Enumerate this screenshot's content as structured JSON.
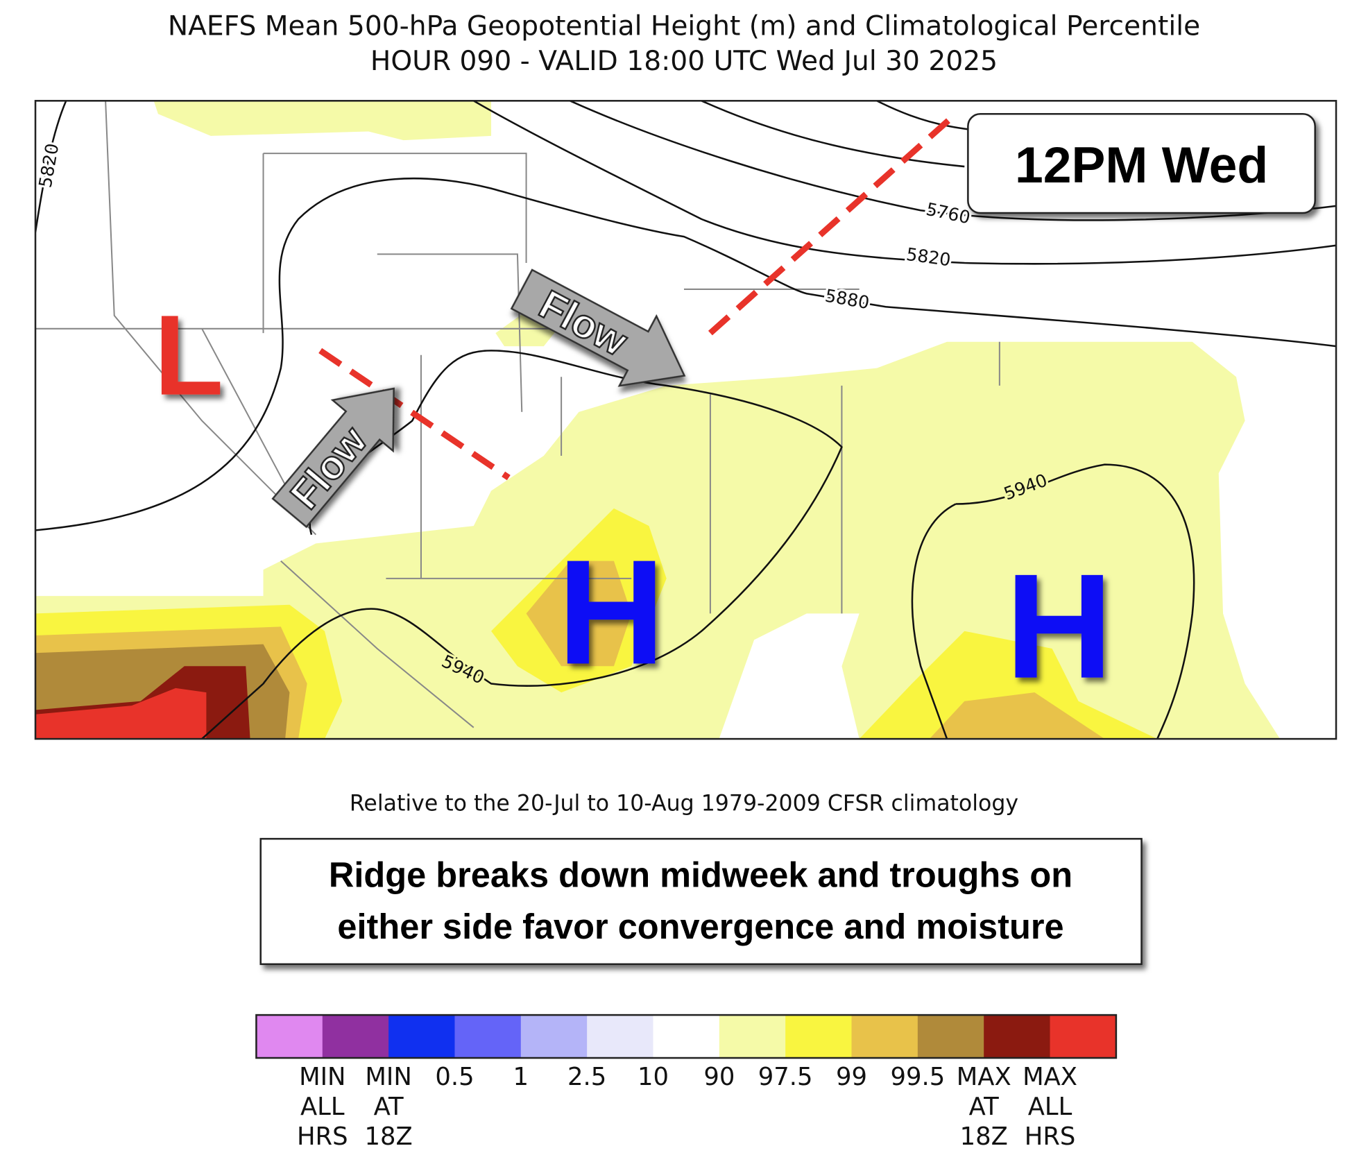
{
  "header": {
    "title": "NAEFS Mean 500-hPa Geopotential Height (m) and Climatological Percentile",
    "subtitle": "HOUR 090 - VALID 18:00 UTC Wed Jul 30 2025"
  },
  "map": {
    "contour_labels": [
      "5820",
      "5760",
      "5820",
      "5880",
      "5940",
      "5940"
    ],
    "systems": [
      "L",
      "H",
      "H"
    ],
    "arrows": [
      "Flow",
      "Flow"
    ],
    "time_label": "12PM Wed"
  },
  "caption": "Relative to the 20-Jul to 10-Aug 1979-2009 CFSR climatology",
  "callout": [
    "Ridge breaks down midweek and troughs on",
    "either side favor convergence and moisture"
  ],
  "colorbar": {
    "colors": [
      "#e088f0",
      "#9030a0",
      "#1030f0",
      "#6464f8",
      "#b4b4f8",
      "#e8e8fa",
      "#ffffff",
      "#f5faa8",
      "#f9f540",
      "#e8c24a",
      "#b08a3a",
      "#8b1a10",
      "#e8332a"
    ],
    "labels": [
      [
        "MIN",
        "ALL",
        "HRS"
      ],
      [
        "MIN",
        "AT",
        "18Z"
      ],
      [
        "0.5"
      ],
      [
        "1"
      ],
      [
        "2.5"
      ],
      [
        "10"
      ],
      [
        "90"
      ],
      [
        "97.5"
      ],
      [
        "99"
      ],
      [
        "99.5"
      ],
      [
        "MAX",
        "AT",
        "18Z"
      ],
      [
        "MAX",
        "ALL",
        "HRS"
      ]
    ]
  }
}
